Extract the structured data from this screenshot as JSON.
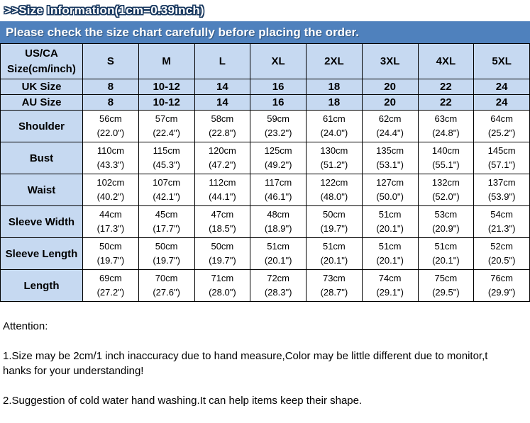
{
  "title": ">>Size Information(1cm=0.39inch)",
  "banner": "Please check the size chart carefully before placing the order.",
  "table": {
    "corner": "US/CA\nSize(cm/inch)",
    "sizes": [
      "S",
      "M",
      "L",
      "XL",
      "2XL",
      "3XL",
      "4XL",
      "5XL"
    ],
    "size_rows": [
      {
        "label": "UK Size",
        "values": [
          "8",
          "10-12",
          "14",
          "16",
          "18",
          "20",
          "22",
          "24"
        ]
      },
      {
        "label": "AU  Size",
        "values": [
          "8",
          "10-12",
          "14",
          "16",
          "18",
          "20",
          "22",
          "24"
        ]
      }
    ],
    "measure_rows": [
      {
        "label": "Shoulder",
        "values": [
          "56cm\n(22.0\")",
          "57cm\n(22.4\")",
          "58cm\n(22.8\")",
          "59cm\n(23.2\")",
          "61cm\n(24.0\")",
          "62cm\n(24.4\")",
          "63cm\n(24.8\")",
          "64cm\n(25.2\")"
        ]
      },
      {
        "label": "Bust",
        "values": [
          "110cm\n(43.3\")",
          "115cm\n(45.3\")",
          "120cm\n(47.2\")",
          "125cm\n(49.2\")",
          "130cm\n(51.2\")",
          "135cm\n(53.1\")",
          "140cm\n(55.1\")",
          "145cm\n(57.1\")"
        ]
      },
      {
        "label": "Waist",
        "values": [
          "102cm\n(40.2\")",
          "107cm\n(42.1\")",
          "112cm\n(44.1\")",
          "117cm\n(46.1\")",
          "122cm\n(48.0\")",
          "127cm\n(50.0\")",
          "132cm\n(52.0\")",
          "137cm\n(53.9\")"
        ]
      },
      {
        "label": "Sleeve Width",
        "values": [
          "44cm\n(17.3\")",
          "45cm\n(17.7\")",
          "47cm\n(18.5\")",
          "48cm\n(18.9\")",
          "50cm\n(19.7\")",
          "51cm\n(20.1\")",
          "53cm\n(20.9\")",
          "54cm\n(21.3\")"
        ]
      },
      {
        "label": "Sleeve Length",
        "values": [
          "50cm\n(19.7\")",
          "50cm\n(19.7\")",
          "50cm\n(19.7\")",
          "51cm\n(20.1\")",
          "51cm\n(20.1\")",
          "51cm\n(20.1\")",
          "51cm\n(20.1\")",
          "52cm\n(20.5\")"
        ]
      },
      {
        "label": "Length",
        "values": [
          "69cm\n(27.2\")",
          "70cm\n(27.6\")",
          "71cm\n(28.0\")",
          "72cm\n(28.3\")",
          "73cm\n(28.7\")",
          "74cm\n(29.1\")",
          "75cm\n(29.5\")",
          "76cm\n(29.9\")"
        ]
      }
    ]
  },
  "notes": {
    "attention": "Attention:",
    "note1": "1.Size may be 2cm/1 inch inaccuracy due to hand measure,Color may be little different due to monitor,t\nhanks for your understanding!",
    "note2": "2.Suggestion of cold water hand washing.It can help items keep their shape."
  },
  "colors": {
    "banner_bg": "#4f81bd",
    "header_bg": "#c6d9f1",
    "border": "#000000"
  }
}
